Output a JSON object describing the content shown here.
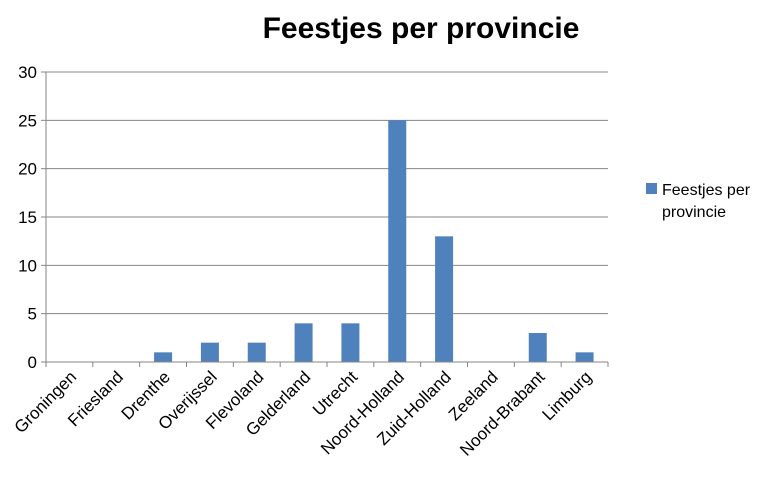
{
  "chart_data": {
    "type": "bar",
    "title": "Feestjes per provincie",
    "xlabel": "",
    "ylabel": "",
    "categories": [
      "Groningen",
      "Friesland",
      "Drenthe",
      "Overijssel",
      "Flevoland",
      "Gelderland",
      "Utrecht",
      "Noord-Holland",
      "Zuid-Holland",
      "Zeeland",
      "Noord-Brabant",
      "Limburg"
    ],
    "series": [
      {
        "name": "Feestjes per provincie",
        "legend_lines": [
          "Feestjes per",
          "provincie"
        ],
        "color": "#4F81BD",
        "values": [
          0,
          0,
          1,
          2,
          2,
          4,
          4,
          25,
          13,
          0,
          3,
          1
        ]
      }
    ],
    "ylim": [
      0,
      30
    ],
    "yticks": [
      0,
      5,
      10,
      15,
      20,
      25,
      30
    ],
    "grid": true,
    "legend": "right"
  }
}
